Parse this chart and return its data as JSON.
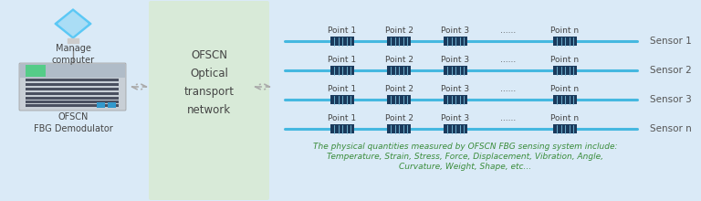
{
  "bg_color": "#daeaf7",
  "green_bg": "#d8ead8",
  "fiber_color": "#45b8e0",
  "grating_color": "#1a3a5c",
  "arrow_color": "#aaaaaa",
  "sensor_label_color": "#555555",
  "point_label_color": "#444444",
  "text_italic_color": "#3a8c3a",
  "ofscn_text": "OFSCN\nOptical\ntransport\nnetwork",
  "demod_label": "OFSCN\nFBG Demodulator",
  "manage_label": "Manage\ncomputer",
  "sensors": [
    "Sensor 1",
    "Sensor 2",
    "Sensor 3",
    "Sensor n"
  ],
  "points": [
    "Point 1",
    "Point 2",
    "Point 3",
    "......",
    "Point n"
  ],
  "italic_text_line1": "The physical quantities measured by OFSCN FBG sensing system include:",
  "italic_text_line2": "Temperature, Strain, Stress, Force, Displacement, Vibration, Angle,",
  "italic_text_line3": "Curvature, Weight, Shape, etc..."
}
